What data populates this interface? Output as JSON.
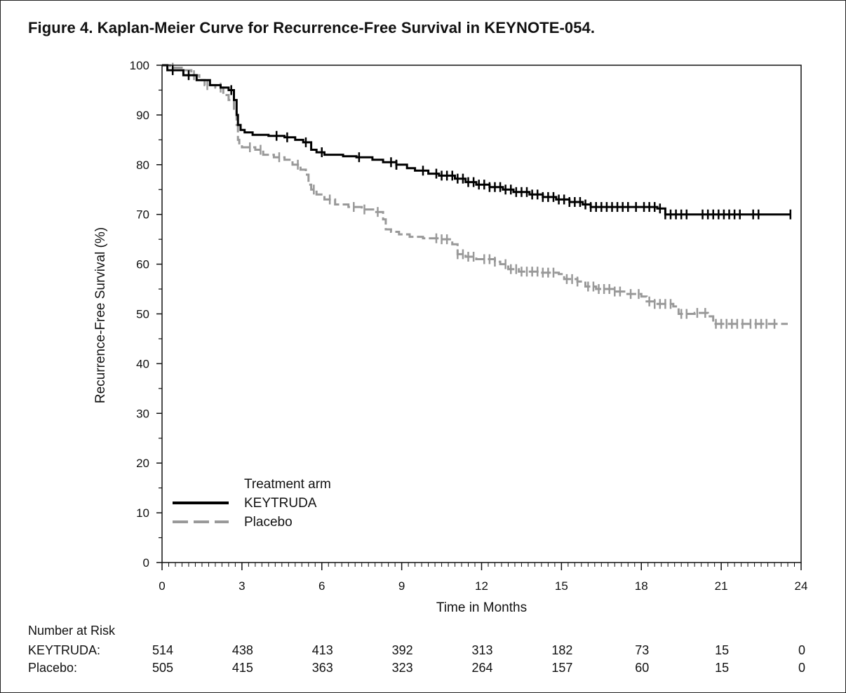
{
  "title": "Figure 4. Kaplan-Meier Curve for Recurrence-Free Survival in KEYNOTE-054.",
  "chart_data": {
    "type": "line",
    "title": "Figure 4. Kaplan-Meier Curve for Recurrence-Free Survival in KEYNOTE-054.",
    "xlabel": "Time in Months",
    "ylabel": "Recurrence-Free Survival (%)",
    "xlim": [
      0,
      24
    ],
    "ylim": [
      0,
      100
    ],
    "xticks": [
      "0",
      "3",
      "6",
      "9",
      "12",
      "15",
      "18",
      "21",
      "24"
    ],
    "yticks": [
      "0",
      "10",
      "20",
      "30",
      "40",
      "50",
      "60",
      "70",
      "80",
      "90",
      "100"
    ],
    "grid": false,
    "legend": {
      "title": "Treatment arm",
      "position": "bottom-left",
      "entries": [
        "KEYTRUDA",
        "Placebo"
      ]
    },
    "series": [
      {
        "name": "KEYTRUDA",
        "color": "#000000",
        "style": "solid",
        "step_points": [
          [
            0,
            100
          ],
          [
            0.2,
            99
          ],
          [
            0.8,
            98
          ],
          [
            1.3,
            97
          ],
          [
            1.8,
            96
          ],
          [
            2.2,
            95.5
          ],
          [
            2.5,
            95
          ],
          [
            2.7,
            93
          ],
          [
            2.8,
            90
          ],
          [
            2.85,
            88
          ],
          [
            2.95,
            87
          ],
          [
            3.1,
            86.5
          ],
          [
            3.4,
            86
          ],
          [
            4.0,
            85.8
          ],
          [
            4.6,
            85.5
          ],
          [
            5.0,
            85
          ],
          [
            5.3,
            84.5
          ],
          [
            5.6,
            83
          ],
          [
            5.8,
            82.5
          ],
          [
            6.1,
            82
          ],
          [
            6.8,
            81.7
          ],
          [
            7.3,
            81.5
          ],
          [
            7.9,
            81
          ],
          [
            8.3,
            80.5
          ],
          [
            8.8,
            80
          ],
          [
            9.2,
            79.3
          ],
          [
            9.5,
            78.8
          ],
          [
            10.0,
            78.2
          ],
          [
            10.4,
            77.8
          ],
          [
            11.0,
            77.2
          ],
          [
            11.4,
            76.5
          ],
          [
            11.8,
            76
          ],
          [
            12.3,
            75.5
          ],
          [
            12.8,
            75
          ],
          [
            13.2,
            74.5
          ],
          [
            13.8,
            74
          ],
          [
            14.3,
            73.5
          ],
          [
            14.8,
            73
          ],
          [
            15.3,
            72.5
          ],
          [
            15.8,
            72
          ],
          [
            16.1,
            71.5
          ],
          [
            18.6,
            71.2
          ],
          [
            18.9,
            70
          ],
          [
            23.6,
            70
          ]
        ],
        "censor_times": [
          0.4,
          1.0,
          2.6,
          4.3,
          4.7,
          5.4,
          6.0,
          7.4,
          8.6,
          8.8,
          8.8,
          9.8,
          10.3,
          10.5,
          10.7,
          10.9,
          11.1,
          11.3,
          11.5,
          11.7,
          11.9,
          12.1,
          12.3,
          12.5,
          12.7,
          12.9,
          13.1,
          13.3,
          13.5,
          13.7,
          13.9,
          14.1,
          14.3,
          14.5,
          14.7,
          14.9,
          15.1,
          15.3,
          15.5,
          15.7,
          15.9,
          16.1,
          16.3,
          16.5,
          16.7,
          16.9,
          17.1,
          17.3,
          17.5,
          17.8,
          18.1,
          18.3,
          18.5,
          18.7,
          18.9,
          19.1,
          19.3,
          19.5,
          19.7,
          20.3,
          20.5,
          20.7,
          20.9,
          21.1,
          21.3,
          21.5,
          21.7,
          22.2,
          22.4,
          23.6
        ]
      },
      {
        "name": "Placebo",
        "color": "#999999",
        "style": "dashed",
        "step_points": [
          [
            0,
            100
          ],
          [
            0.3,
            99.5
          ],
          [
            0.8,
            99
          ],
          [
            1.1,
            98
          ],
          [
            1.4,
            97
          ],
          [
            1.6,
            96
          ],
          [
            2.0,
            95.5
          ],
          [
            2.3,
            94
          ],
          [
            2.5,
            93
          ],
          [
            2.7,
            91
          ],
          [
            2.8,
            88
          ],
          [
            2.85,
            85
          ],
          [
            2.9,
            84
          ],
          [
            3.0,
            83.5
          ],
          [
            3.5,
            83
          ],
          [
            3.8,
            82
          ],
          [
            4.2,
            81.5
          ],
          [
            4.6,
            81
          ],
          [
            4.9,
            80
          ],
          [
            5.2,
            79
          ],
          [
            5.4,
            78
          ],
          [
            5.5,
            76
          ],
          [
            5.6,
            75
          ],
          [
            5.8,
            74
          ],
          [
            6.1,
            73
          ],
          [
            6.5,
            72
          ],
          [
            7.0,
            71.5
          ],
          [
            7.5,
            71
          ],
          [
            8.0,
            70.5
          ],
          [
            8.3,
            69
          ],
          [
            8.4,
            67
          ],
          [
            8.6,
            66.5
          ],
          [
            8.9,
            66
          ],
          [
            9.3,
            65.5
          ],
          [
            9.8,
            65.2
          ],
          [
            10.4,
            65
          ],
          [
            10.9,
            64
          ],
          [
            11.1,
            62
          ],
          [
            11.4,
            61.5
          ],
          [
            11.8,
            61
          ],
          [
            12.5,
            60.5
          ],
          [
            12.7,
            60
          ],
          [
            13.0,
            59
          ],
          [
            13.4,
            58.5
          ],
          [
            14.2,
            58.3
          ],
          [
            14.9,
            58
          ],
          [
            15.1,
            57
          ],
          [
            15.6,
            56.5
          ],
          [
            15.9,
            55.5
          ],
          [
            16.3,
            55
          ],
          [
            17.0,
            54.5
          ],
          [
            17.4,
            54
          ],
          [
            18.0,
            53.5
          ],
          [
            18.2,
            52.5
          ],
          [
            18.5,
            52
          ],
          [
            19.2,
            51.5
          ],
          [
            19.4,
            50
          ],
          [
            20.0,
            50.2
          ],
          [
            20.5,
            49.5
          ],
          [
            20.7,
            48
          ],
          [
            23.5,
            48
          ]
        ],
        "censor_times": [
          0.4,
          1.2,
          1.7,
          2.2,
          3.3,
          3.7,
          4.4,
          5.1,
          5.7,
          6.3,
          7.2,
          7.6,
          8.1,
          10.3,
          10.5,
          10.7,
          11.1,
          11.3,
          11.5,
          11.7,
          12.1,
          12.3,
          12.5,
          12.9,
          13.1,
          13.3,
          13.5,
          13.7,
          13.9,
          14.1,
          14.3,
          14.5,
          14.7,
          15.2,
          15.4,
          15.6,
          16.0,
          16.2,
          16.4,
          16.6,
          16.8,
          17.0,
          17.2,
          17.6,
          17.9,
          18.3,
          18.5,
          18.7,
          18.9,
          19.1,
          19.5,
          19.7,
          20.1,
          20.4,
          20.8,
          21.0,
          21.2,
          21.4,
          21.6,
          21.8,
          22.1,
          22.3,
          22.5,
          22.7,
          23.0
        ]
      }
    ],
    "number_at_risk": {
      "heading": "Number at Risk",
      "rows": [
        {
          "label": "KEYTRUDA:",
          "values": [
            "514",
            "438",
            "413",
            "392",
            "313",
            "182",
            "73",
            "15",
            "0"
          ]
        },
        {
          "label": "Placebo:",
          "values": [
            "505",
            "415",
            "363",
            "323",
            "264",
            "157",
            "60",
            "15",
            "0"
          ]
        }
      ]
    }
  }
}
